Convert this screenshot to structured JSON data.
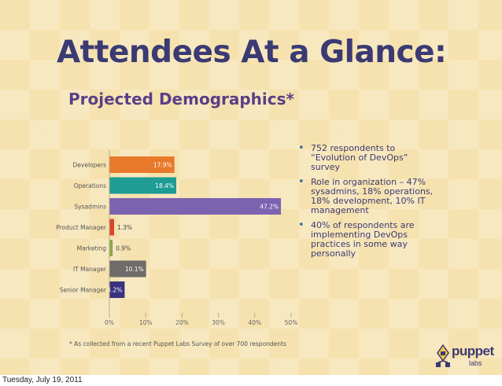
{
  "slide": {
    "title": "Attendees At a Glance:",
    "subtitle": "Projected Demographics*",
    "bullets": [
      "752 respondents to “Evolution of DevOps” survey",
      "Role in organization – 47% sysadmins, 18% operations, 18% development, 10% IT management",
      "40% of respondents are implementing DevOps practices in some way personally"
    ],
    "footnote": "* As collected from a recent Puppet Labs Survey of over 700 respondents",
    "logo": {
      "word": "puppet",
      "sub": "labs",
      "icon": "puppet-labs-logo-icon"
    },
    "footer_date": "Tuesday, July 19, 2011"
  },
  "colors": {
    "background": "#f6e2ae",
    "title": "#3b3a73",
    "subtitle": "#5b3f86",
    "bullet_dot": "#3b6fa8"
  },
  "chart_data": {
    "type": "bar",
    "orientation": "horizontal",
    "categories": [
      "Developers",
      "Operations",
      "Sysadmins",
      "Product Manager",
      "Marketing",
      "IT Manager",
      "Senior Manager"
    ],
    "values": [
      17.9,
      18.4,
      47.2,
      1.3,
      0.9,
      10.1,
      4.2
    ],
    "value_labels": [
      "17.9%",
      "18.4%",
      "47.2%",
      "1.3%",
      "0.9%",
      "10.1%",
      "4.2%"
    ],
    "colors": [
      "#e8792b",
      "#1f9c93",
      "#7b63b0",
      "#d9452b",
      "#8fa84a",
      "#6e6b6a",
      "#3a3280"
    ],
    "label_inside": [
      true,
      true,
      true,
      false,
      false,
      true,
      true
    ],
    "x_ticks": [
      "0%",
      "10%",
      "20%",
      "30%",
      "40%",
      "50%"
    ],
    "xlim": [
      0,
      50
    ],
    "grid": false,
    "legend": "none"
  }
}
